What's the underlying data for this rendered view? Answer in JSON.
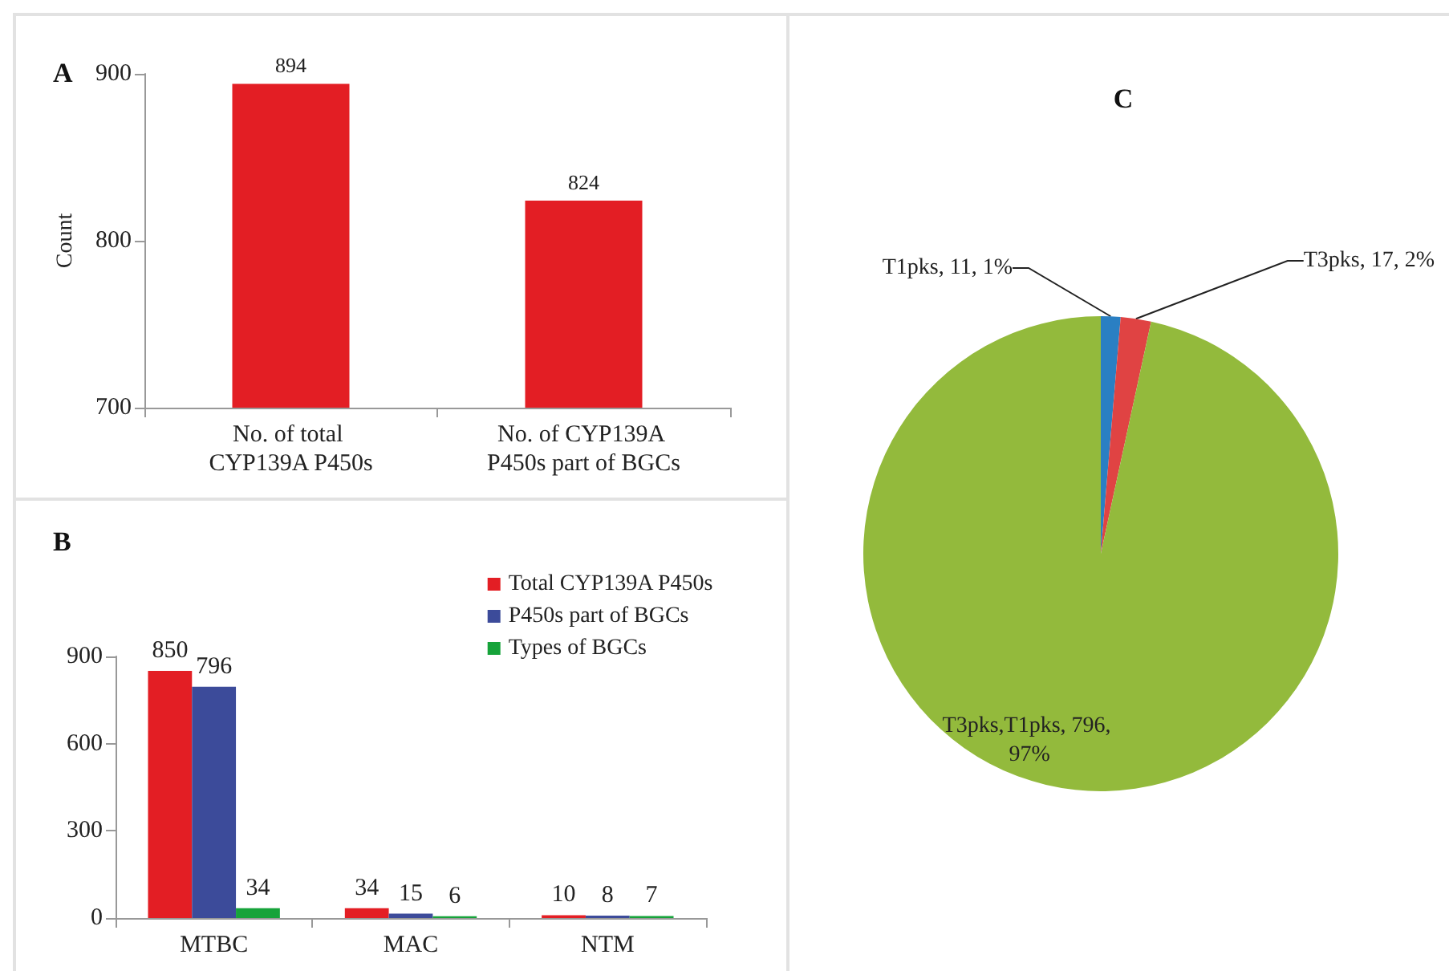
{
  "chart_data": [
    {
      "type": "bar",
      "title": "A",
      "ylabel": "Count",
      "categories": [
        "No. of total CYP139A P450s",
        "No. of CYP139A P450s part of BGCs"
      ],
      "values": [
        894,
        824
      ],
      "color": "#e31e24",
      "ylim": [
        700,
        900
      ],
      "yticks": [
        700,
        800,
        900
      ],
      "grid": false,
      "legend": false,
      "data_labels": true
    },
    {
      "type": "bar",
      "title": "B",
      "categories": [
        "MTBC",
        "MAC",
        "NTM"
      ],
      "series": [
        {
          "name": "Total CYP139A P450s",
          "color": "#e31e24",
          "values": [
            850,
            34,
            10
          ]
        },
        {
          "name": "P450s part of BGCs",
          "color": "#3c4b9a",
          "values": [
            796,
            15,
            8
          ]
        },
        {
          "name": "Types of BGCs",
          "color": "#16a33a",
          "values": [
            34,
            6,
            7
          ]
        }
      ],
      "ylim": [
        0,
        900
      ],
      "yticks": [
        0,
        300,
        600,
        900
      ],
      "grid": false,
      "legend": "top right",
      "data_labels": true
    },
    {
      "type": "pie",
      "title": "C",
      "categories": [
        "T1pks",
        "T3pks",
        "T3pks,T1pks"
      ],
      "values": [
        11,
        17,
        796
      ],
      "colors": [
        "#2a7fc3",
        "#e04343",
        "#93ba3c"
      ],
      "value_labels": [
        "11, 1%",
        "17, 2%",
        "796, 97%"
      ],
      "legend": false
    }
  ]
}
